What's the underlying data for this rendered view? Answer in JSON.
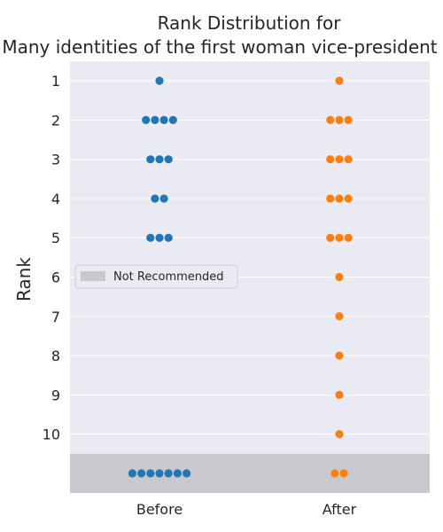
{
  "chart_data": {
    "type": "scatter",
    "style": "swarm",
    "title": [
      "Rank Distribution for",
      "Many identities of the first woman vice-president"
    ],
    "xlabel": "",
    "ylabel": "Rank",
    "categories": [
      "Before",
      "After"
    ],
    "y_ticks": [
      "1",
      "2",
      "3",
      "4",
      "5",
      "6",
      "7",
      "8",
      "9",
      "10"
    ],
    "ylim": [
      0.5,
      11.5
    ],
    "inverted_y": true,
    "grid": true,
    "legend": {
      "placement": "center-left",
      "entries": [
        {
          "label": "Not Recommended",
          "color": "#c9c8cf"
        }
      ]
    },
    "not_recommended_band": {
      "label": "Not Recommended",
      "rank_range": [
        10.5,
        11.5
      ]
    },
    "series": [
      {
        "category": "Before",
        "color": "#1f77b4",
        "points": [
          {
            "rank": 1,
            "count": 1
          },
          {
            "rank": 2,
            "count": 4
          },
          {
            "rank": 3,
            "count": 3
          },
          {
            "rank": 4,
            "count": 2
          },
          {
            "rank": 5,
            "count": 3
          },
          {
            "rank": 11,
            "count": 7
          }
        ]
      },
      {
        "category": "After",
        "color": "#ff7f0e",
        "points": [
          {
            "rank": 1,
            "count": 1
          },
          {
            "rank": 2,
            "count": 3
          },
          {
            "rank": 3,
            "count": 3
          },
          {
            "rank": 4,
            "count": 3
          },
          {
            "rank": 5,
            "count": 3
          },
          {
            "rank": 6,
            "count": 1
          },
          {
            "rank": 7,
            "count": 1
          },
          {
            "rank": 8,
            "count": 1
          },
          {
            "rank": 9,
            "count": 1
          },
          {
            "rank": 10,
            "count": 1
          },
          {
            "rank": 11,
            "count": 2
          }
        ]
      }
    ],
    "colors": {
      "plot_background": "#eaeaf2",
      "grid": "#ffffff",
      "band": "#c9c8cf"
    }
  }
}
